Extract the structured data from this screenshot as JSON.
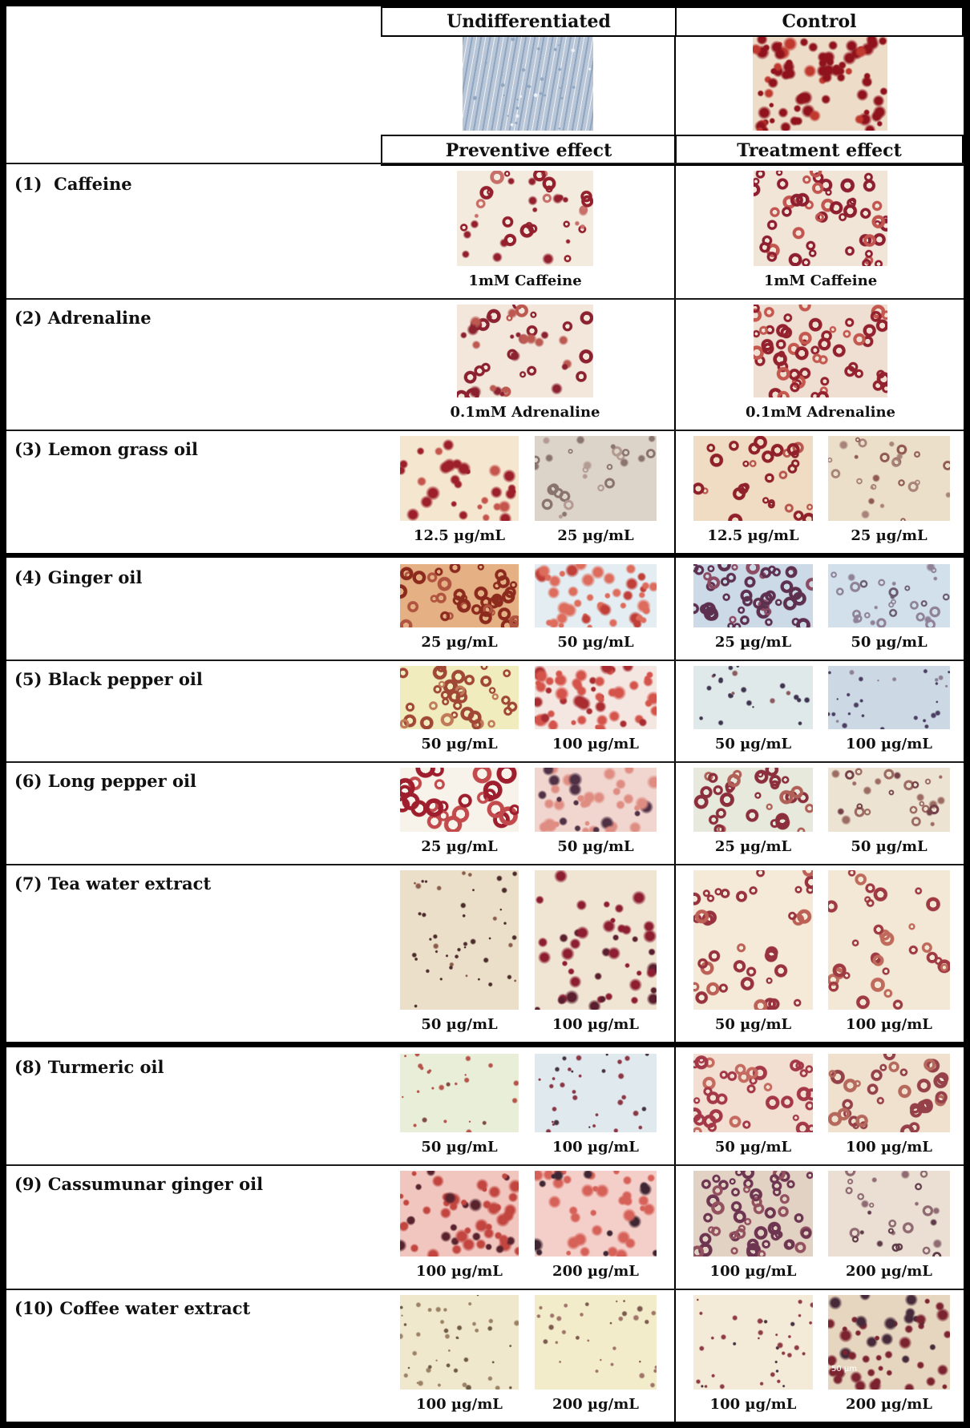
{
  "figure": {
    "top_headers": [
      "Undifferentiated",
      "Control"
    ],
    "effect_headers": [
      "Preventive effect",
      "Treatment effect"
    ],
    "reference_images": [
      {
        "name": "undifferentiated-micrograph",
        "bg": "#b9c6d8",
        "c1": "#8fa5c0",
        "c2": "#eef2f7",
        "kind": "fibro",
        "n": 30
      },
      {
        "name": "control-micrograph",
        "bg": "#eddcc8",
        "c1": "#8f121c",
        "c2": "#c0392f",
        "kind": "blobs",
        "n": 80
      }
    ],
    "rows": [
      {
        "label": "(1)  Caffeine",
        "preventive": [
          {
            "cap": "1mM Caffeine",
            "bg": "#f4ebdf",
            "c1": "#93202c",
            "c2": "#c96f6a",
            "kind": "mixed",
            "n": 40
          }
        ],
        "treatment": [
          {
            "cap": "1mM Caffeine",
            "bg": "#f1e5d8",
            "c1": "#8e1f30",
            "c2": "#c2554f",
            "kind": "rings",
            "n": 52
          }
        ]
      },
      {
        "label": "(2) Adrenaline",
        "preventive": [
          {
            "cap": "0.1mM Adrenaline",
            "bg": "#f2e7da",
            "c1": "#8c2130",
            "c2": "#bc5a52",
            "kind": "mixed",
            "n": 44
          }
        ],
        "treatment": [
          {
            "cap": "0.1mM Adrenaline",
            "bg": "#efdfd2",
            "c1": "#93222e",
            "c2": "#c4574e",
            "kind": "rings",
            "n": 58
          }
        ]
      },
      {
        "label": "(3) Lemon grass oil",
        "preventive": [
          {
            "cap": "12.5 µg/mL",
            "bg": "#f5e6cf",
            "c1": "#9c1f2a",
            "c2": "#c4544c",
            "kind": "blobs",
            "n": 30
          },
          {
            "cap": "25 µg/mL",
            "bg": "#ddd4c9",
            "c1": "#8a7470",
            "c2": "#b39b92",
            "kind": "faint",
            "n": 28
          }
        ],
        "treatment": [
          {
            "cap": "12.5 µg/mL",
            "bg": "#f0dcc2",
            "c1": "#90202c",
            "c2": "#b9564e",
            "kind": "rings",
            "n": 30
          },
          {
            "cap": "25 µg/mL",
            "bg": "#ecdfc9",
            "c1": "#a8837a",
            "c2": "#8f5a54",
            "kind": "faint",
            "n": 26
          }
        ]
      },
      {
        "label": "(4) Ginger oil",
        "preventive": [
          {
            "cap": "25 µg/mL",
            "bg": "#e5b184",
            "c1": "#8c2a1e",
            "c2": "#b0543f",
            "kind": "rings",
            "n": 42
          },
          {
            "cap": "50 µg/mL",
            "bg": "#e3edf2",
            "c1": "#de6c5c",
            "c2": "#c03f38",
            "kind": "blobs",
            "n": 46
          }
        ],
        "treatment": [
          {
            "cap": "25 µg/mL",
            "bg": "#ccdae8",
            "c1": "#5d3050",
            "c2": "#8c4a63",
            "kind": "rings",
            "n": 46
          },
          {
            "cap": "50 µg/mL",
            "bg": "#d2e0ec",
            "c1": "#8f8298",
            "c2": "#6b5b72",
            "kind": "faint",
            "n": 30
          }
        ]
      },
      {
        "label": "(5) Black pepper oil",
        "preventive": [
          {
            "cap": "50 µg/mL",
            "bg": "#f0ecbe",
            "c1": "#a04736",
            "c2": "#c07a58",
            "kind": "rings",
            "n": 36
          },
          {
            "cap": "100 µg/mL",
            "bg": "#f4e7e2",
            "c1": "#d4544b",
            "c2": "#a82c30",
            "kind": "blobs",
            "n": 56
          }
        ],
        "treatment": [
          {
            "cap": "50 µg/mL",
            "bg": "#e0e9e9",
            "c1": "#3d3550",
            "c2": "#8a5a5e",
            "kind": "specks",
            "n": 24
          },
          {
            "cap": "100 µg/mL",
            "bg": "#ccd9e4",
            "c1": "#4a3f63",
            "c2": "#8d7f95",
            "kind": "specks",
            "n": 28
          }
        ]
      },
      {
        "label": "(6) Long pepper oil",
        "preventive": [
          {
            "cap": "25 µg/mL",
            "bg": "#f7f2ea",
            "c1": "#9e1e2e",
            "c2": "#c24a4c",
            "kind": "bigrings",
            "n": 26
          },
          {
            "cap": "50 µg/mL",
            "bg": "#f1d6d0",
            "c1": "#df8d82",
            "c2": "#503044",
            "kind": "blobs",
            "n": 42
          }
        ],
        "treatment": [
          {
            "cap": "25 µg/mL",
            "bg": "#e6e9dc",
            "c1": "#8c2f3c",
            "c2": "#b06057",
            "kind": "rings",
            "n": 32
          },
          {
            "cap": "50 µg/mL",
            "bg": "#ece3d2",
            "c1": "#9c6b62",
            "c2": "#75424a",
            "kind": "faint",
            "n": 28
          }
        ]
      },
      {
        "label": "(7) Tea water extract",
        "preventive": [
          {
            "cap": "50 µg/mL",
            "bg": "#ebdfc9",
            "c1": "#4c2b2b",
            "c2": "#8a5c4a",
            "kind": "specks",
            "n": 44
          },
          {
            "cap": "100 µg/mL",
            "bg": "#f0e4d2",
            "c1": "#8d1e32",
            "c2": "#5a1f2e",
            "kind": "blobs",
            "n": 44
          }
        ],
        "treatment": [
          {
            "cap": "50 µg/mL",
            "bg": "#f4ead7",
            "c1": "#98323e",
            "c2": "#bd6055",
            "kind": "rings",
            "n": 38
          },
          {
            "cap": "100 µg/mL",
            "bg": "#f2e8d5",
            "c1": "#a03a42",
            "c2": "#c06a5c",
            "kind": "rings",
            "n": 34
          }
        ]
      },
      {
        "label": "(8) Turmeric oil",
        "preventive": [
          {
            "cap": "50 µg/mL",
            "bg": "#e9eed8",
            "c1": "#b5544a",
            "c2": "#7e4a42",
            "kind": "specks",
            "n": 24
          },
          {
            "cap": "100 µg/mL",
            "bg": "#dfe9ee",
            "c1": "#8c3644",
            "c2": "#45333f",
            "kind": "specks",
            "n": 32
          }
        ],
        "treatment": [
          {
            "cap": "50 µg/mL",
            "bg": "#f2dfd2",
            "c1": "#a43848",
            "c2": "#c46a5e",
            "kind": "rings",
            "n": 38
          },
          {
            "cap": "100 µg/mL",
            "bg": "#efe1cd",
            "c1": "#96404a",
            "c2": "#b5685c",
            "kind": "rings",
            "n": 34
          }
        ]
      },
      {
        "label": "(9) Cassumunar ginger oil",
        "preventive": [
          {
            "cap": "100 µg/mL",
            "bg": "#f1c6bf",
            "c1": "#c2453f",
            "c2": "#59232e",
            "kind": "blobs",
            "n": 56
          },
          {
            "cap": "200 µg/mL",
            "bg": "#f4cfc9",
            "c1": "#d66158",
            "c2": "#3f2633",
            "kind": "blobs",
            "n": 46
          }
        ],
        "treatment": [
          {
            "cap": "100 µg/mL",
            "bg": "#e2d2c4",
            "c1": "#6e3550",
            "c2": "#93505e",
            "kind": "rings",
            "n": 56
          },
          {
            "cap": "200 µg/mL",
            "bg": "#eadfd2",
            "c1": "#8f6a72",
            "c2": "#5f3a49",
            "kind": "faint",
            "n": 28
          }
        ]
      },
      {
        "label": "(10) Coffee water extract",
        "preventive": [
          {
            "cap": "100 µg/mL",
            "bg": "#f0e8cd",
            "c1": "#9c8265",
            "c2": "#6e5a46",
            "kind": "specks",
            "n": 42
          },
          {
            "cap": "200 µg/mL",
            "bg": "#f2ecca",
            "c1": "#a1746a",
            "c2": "#7c5a4e",
            "kind": "specks",
            "n": 32
          }
        ],
        "treatment": [
          {
            "cap": "100 µg/mL",
            "bg": "#f4ead8",
            "c1": "#8e3a44",
            "c2": "#44303e",
            "kind": "specks",
            "n": 36
          },
          {
            "cap": "200 µg/mL",
            "bg": "#e7d6bf",
            "c1": "#7c2330",
            "c2": "#472a3a",
            "kind": "blobs",
            "n": 52,
            "overlay": "50 µm"
          }
        ]
      }
    ]
  }
}
